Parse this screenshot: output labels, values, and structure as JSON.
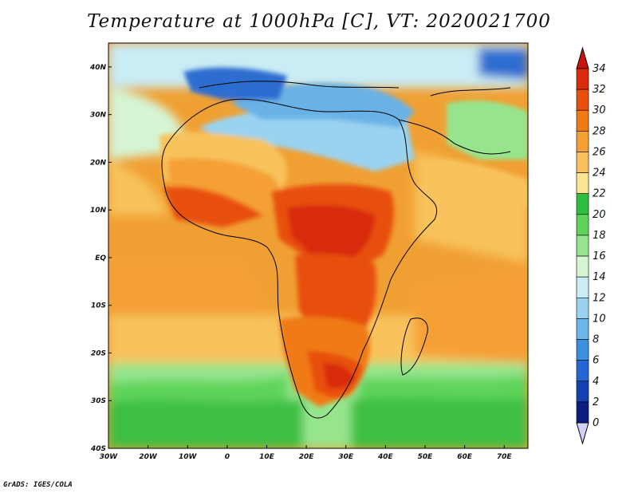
{
  "title": "Temperature at 1000hPa [C], VT: 2020021700",
  "credit": "GrADS: IGES/COLA",
  "map": {
    "lon_range": [
      -30,
      76
    ],
    "lat_range": [
      -40,
      45
    ],
    "x_ticks": [
      "30W",
      "20W",
      "10W",
      "0",
      "10E",
      "20E",
      "30E",
      "40E",
      "50E",
      "60E",
      "70E"
    ],
    "y_ticks": [
      "40N",
      "30N",
      "20N",
      "10N",
      "EQ",
      "10S",
      "20S",
      "30S",
      "40S"
    ]
  },
  "colorbar": {
    "labels": [
      "34",
      "32",
      "30",
      "28",
      "26",
      "24",
      "22",
      "20",
      "18",
      "16",
      "14",
      "12",
      "10",
      "8",
      "6",
      "4",
      "2",
      "0"
    ],
    "colors": [
      "#d82c0a",
      "#e8500e",
      "#f07a14",
      "#f5a035",
      "#f8c25c",
      "#fbe590",
      "#2fbf3f",
      "#5fd45a",
      "#96e58d",
      "#d5f5d5",
      "#c9ecf5",
      "#99d3f0",
      "#6bb6ea",
      "#3b8fe0",
      "#2466d3",
      "#1242b0",
      "#0a1e80"
    ],
    "top_arrow_color": "#c8140a",
    "bottom_arrow_color": "#d2d2f5"
  },
  "palette": {
    "ocean_warm": "#f0a033",
    "ocean_mid": "#f8c25c",
    "sea_cool": "#e6f5c8",
    "southern_green": "#3cbf43",
    "hot_core": "#d82c0a",
    "mediterranean": "#6ab2e6",
    "north_cold": "#2d6dd0"
  }
}
